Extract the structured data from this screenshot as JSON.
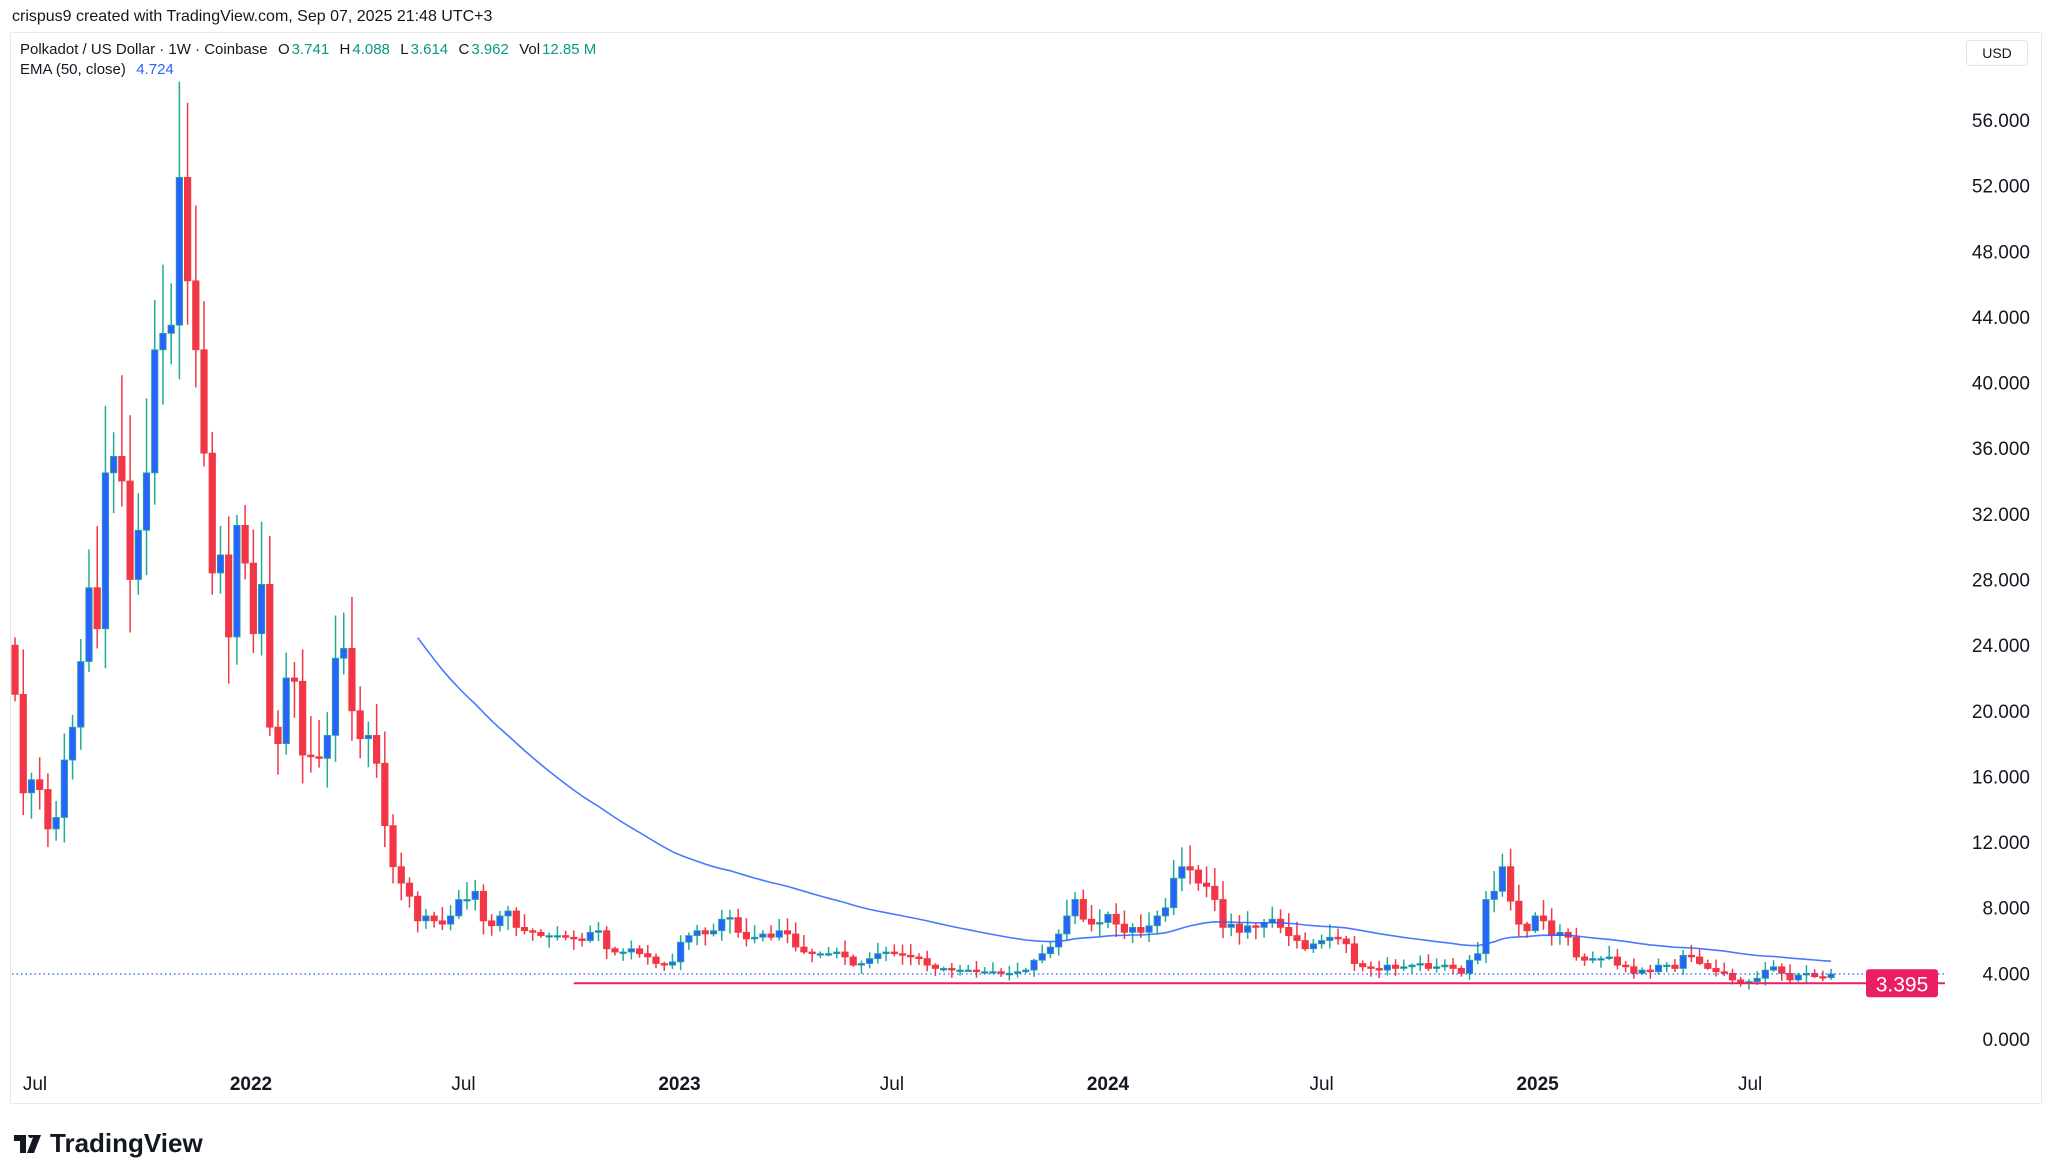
{
  "caption": "crispus9 created with TradingView.com, Sep 07, 2025 21:48 UTC+3",
  "legend": {
    "symbol": "Polkadot / US Dollar · 1W · Coinbase",
    "o_label": "O",
    "o": "3.741",
    "h_label": "H",
    "h": "4.088",
    "l_label": "L",
    "l": "3.614",
    "c_label": "C",
    "c": "3.962",
    "vol_label": "Vol",
    "vol": "12.85 M",
    "ema_label": "EMA (50, close)",
    "ema": "4.724"
  },
  "currency": "USD",
  "logo": "TradingView",
  "colors": {
    "up_body": "#2962ff",
    "up_wick": "#22ab94",
    "down": "#f23645",
    "ema": "#2962ff",
    "support": "#e91e63"
  },
  "chart_data": {
    "type": "candlestick",
    "interval": "1W",
    "first_week": "2021-06-14",
    "first_open": 24.0,
    "closes": [
      21,
      15,
      15.8,
      15.2,
      12.8,
      13.5,
      17,
      19,
      23,
      27.5,
      25,
      34.5,
      35.5,
      34,
      28,
      31,
      34.5,
      42,
      43,
      43.5,
      52.5,
      46.2,
      42,
      35.7,
      28.4,
      29.5,
      24.5,
      31.3,
      29,
      24.7,
      27.7,
      19,
      18,
      22,
      21.8,
      17.3,
      17.2,
      17.1,
      18.5,
      23.2,
      23.8,
      20,
      18.3,
      18.5,
      16.8,
      13,
      10.5,
      9.5,
      8.7,
      7.2,
      7.5,
      7.2,
      7.0,
      7.5,
      8.5,
      8.5,
      9.0,
      7.2,
      6.9,
      7.5,
      7.8,
      6.8,
      6.6,
      6.5,
      6.3,
      6.3,
      6.3,
      6.2,
      6.1,
      6.0,
      6.5,
      6.6,
      5.5,
      5.3,
      5.3,
      5.5,
      5.2,
      5.0,
      4.6,
      4.5,
      4.7,
      5.9,
      6.3,
      6.6,
      6.4,
      6.6,
      7.3,
      7.4,
      6.5,
      6.1,
      6.2,
      6.4,
      6.2,
      6.6,
      6.4,
      5.6,
      5.3,
      5.2,
      5.2,
      5.2,
      5.3,
      5.0,
      4.5,
      4.6,
      4.9,
      5.2,
      5.3,
      5.2,
      5.1,
      5.0,
      4.9,
      4.5,
      4.3,
      4.3,
      4.2,
      4.2,
      4.2,
      4.1,
      4.1,
      4.1,
      4.0,
      4.0,
      4.1,
      4.2,
      4.8,
      5.2,
      5.6,
      6.4,
      7.5,
      8.5,
      7.3,
      7.0,
      7.1,
      7.6,
      7.0,
      6.5,
      6.8,
      6.5,
      6.9,
      7.5,
      8.0,
      9.8,
      10.5,
      10.3,
      9.5,
      9.3,
      8.5,
      6.8,
      7.0,
      6.5,
      6.9,
      6.8,
      7.1,
      7.3,
      6.8,
      6.3,
      6.0,
      5.5,
      5.8,
      6.0,
      6.2,
      6.1,
      5.8,
      4.6,
      4.4,
      4.3,
      4.2,
      4.5,
      4.3,
      4.4,
      4.5,
      4.6,
      4.3,
      4.4,
      4.5,
      4.3,
      4.0,
      4.8,
      5.2,
      8.5,
      9.0,
      10.5,
      8.4,
      7.0,
      6.6,
      7.5,
      7.2,
      6.3,
      6.5,
      6.2,
      5.0,
      4.8,
      4.9,
      4.9,
      5.0,
      4.5,
      4.4,
      4.0,
      4.2,
      4.1,
      4.5,
      4.5,
      4.3,
      5.1,
      5.0,
      4.6,
      4.3,
      4.1,
      4.0,
      3.6,
      3.4,
      3.5,
      3.7,
      4.2,
      4.4,
      4.0,
      3.6,
      3.9,
      4.0,
      3.8,
      3.741,
      3.962
    ],
    "ema_period": 50,
    "y_ticks": [
      "56.000",
      "52.000",
      "48.000",
      "44.000",
      "40.000",
      "36.000",
      "32.000",
      "28.000",
      "24.000",
      "20.000",
      "16.000",
      "12.000",
      "8.000",
      "4.000",
      "0.000"
    ],
    "ylim": [
      0,
      56
    ],
    "x_ticks": [
      {
        "label": "Jul",
        "date": "2021-07-01",
        "year": false
      },
      {
        "label": "2022",
        "date": "2022-01-01",
        "year": true
      },
      {
        "label": "Jul",
        "date": "2022-07-01",
        "year": false
      },
      {
        "label": "2023",
        "date": "2023-01-01",
        "year": true
      },
      {
        "label": "Jul",
        "date": "2023-07-01",
        "year": false
      },
      {
        "label": "2024",
        "date": "2024-01-01",
        "year": true
      },
      {
        "label": "Jul",
        "date": "2024-07-01",
        "year": false
      },
      {
        "label": "2025",
        "date": "2025-01-01",
        "year": true
      },
      {
        "label": "Jul",
        "date": "2025-07-01",
        "year": false
      }
    ],
    "current_price": 3.962,
    "support_line": {
      "value": 3.395,
      "label": "3.395",
      "start": "2022-10-03"
    },
    "grid": false,
    "scale": "linear"
  }
}
